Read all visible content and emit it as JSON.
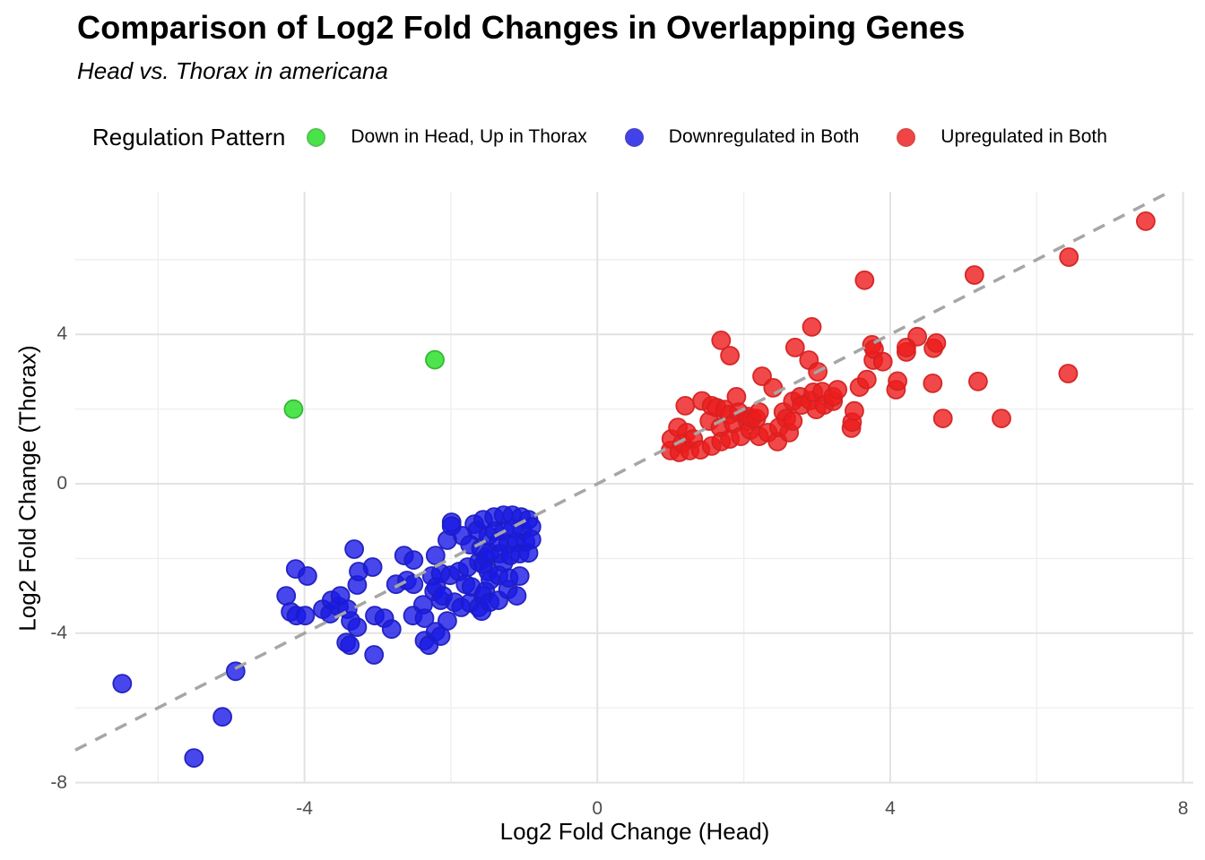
{
  "header": {
    "title": "Comparison of Log2 Fold Changes in Overlapping Genes",
    "subtitle": "Head vs. Thorax in americana"
  },
  "legend": {
    "title": "Regulation Pattern",
    "items": [
      {
        "label": "Down in Head, Up in Thorax",
        "color": "#22dd22",
        "stroke": "#2fb52f"
      },
      {
        "label": "Downregulated in Both",
        "color": "#1919e6",
        "stroke": "#1d1dc0"
      },
      {
        "label": "Upregulated in Both",
        "color": "#ee1c1c",
        "stroke": "#d42222"
      }
    ]
  },
  "chart_data": {
    "type": "scatter",
    "title": "Comparison of Log2 Fold Changes in Overlapping Genes",
    "subtitle": "Head vs. Thorax in americana",
    "xlabel": "Log2 Fold Change (Head)",
    "ylabel": "Log2 Fold Change (Thorax)",
    "xlim": [
      -7.13,
      8.14
    ],
    "ylim": [
      -8.01,
      7.82
    ],
    "x_ticks": [
      -4,
      0,
      4,
      8
    ],
    "y_ticks": [
      -8,
      -4,
      0,
      4
    ],
    "x_minor": [
      -6,
      -2,
      2,
      6
    ],
    "y_minor": [
      -6,
      -2,
      2,
      6
    ],
    "grid": true,
    "legend_position": "top",
    "reference_line": {
      "type": "identity y=x",
      "style": "dashed",
      "color": "#a6a6a6"
    },
    "series": [
      {
        "name": "Downregulated in Both",
        "color": "#1919e6",
        "stroke": "#1d1dc0",
        "points": [
          [
            -6.49,
            -5.35
          ],
          [
            -5.51,
            -7.34
          ],
          [
            -5.12,
            -6.24
          ],
          [
            -4.94,
            -5.02
          ],
          [
            -4.25,
            -3.0
          ],
          [
            -4.19,
            -3.43
          ],
          [
            -4.12,
            -2.28
          ],
          [
            -4.11,
            -3.53
          ],
          [
            -3.99,
            -3.53
          ],
          [
            -3.96,
            -2.47
          ],
          [
            -3.75,
            -3.36
          ],
          [
            -3.65,
            -3.48
          ],
          [
            -3.63,
            -3.12
          ],
          [
            -3.53,
            -3.29
          ],
          [
            -3.51,
            -3.0
          ],
          [
            -3.43,
            -4.25
          ],
          [
            -3.41,
            -3.36
          ],
          [
            -3.38,
            -4.32
          ],
          [
            -3.37,
            -3.67
          ],
          [
            -3.32,
            -1.75
          ],
          [
            -3.28,
            -2.71
          ],
          [
            -3.28,
            -3.84
          ],
          [
            -3.26,
            -2.35
          ],
          [
            -3.07,
            -2.23
          ],
          [
            -3.05,
            -4.58
          ],
          [
            -3.04,
            -3.53
          ],
          [
            -2.91,
            -3.6
          ],
          [
            -2.81,
            -3.89
          ],
          [
            -2.75,
            -2.69
          ],
          [
            -2.64,
            -1.92
          ],
          [
            -2.6,
            -2.59
          ],
          [
            -2.52,
            -3.53
          ],
          [
            -2.51,
            -2.04
          ],
          [
            -2.51,
            -2.69
          ],
          [
            -2.38,
            -3.24
          ],
          [
            -2.36,
            -3.6
          ],
          [
            -2.36,
            -4.2
          ],
          [
            -2.3,
            -4.32
          ],
          [
            -2.26,
            -2.47
          ],
          [
            -2.23,
            -2.88
          ],
          [
            -2.21,
            -1.92
          ],
          [
            -2.21,
            -3.96
          ],
          [
            -2.2,
            -2.76
          ],
          [
            -2.14,
            -2.4
          ],
          [
            -2.14,
            -3.12
          ],
          [
            -2.14,
            -4.08
          ],
          [
            -2.11,
            -3.0
          ],
          [
            -2.05,
            -1.51
          ],
          [
            -2.05,
            -3.67
          ],
          [
            -2.01,
            -2.45
          ],
          [
            -1.99,
            -1.03
          ],
          [
            -1.99,
            -1.13
          ],
          [
            -1.95,
            -3.17
          ],
          [
            -1.89,
            -2.35
          ],
          [
            -1.86,
            -3.31
          ],
          [
            -1.84,
            -1.39
          ],
          [
            -1.8,
            -2.69
          ],
          [
            -1.77,
            -2.23
          ],
          [
            -1.74,
            -1.63
          ],
          [
            -1.74,
            -3.19
          ],
          [
            -1.72,
            -2.76
          ],
          [
            -1.68,
            -1.08
          ],
          [
            -1.64,
            -1.25
          ],
          [
            -1.62,
            -2.09
          ],
          [
            -1.62,
            -3.31
          ],
          [
            -1.59,
            -1.73
          ],
          [
            -1.58,
            -3.41
          ],
          [
            -1.56,
            -0.96
          ],
          [
            -1.56,
            -2.16
          ],
          [
            -1.56,
            -3.0
          ],
          [
            -1.53,
            -2.88
          ],
          [
            -1.52,
            -1.97
          ],
          [
            -1.49,
            -1.39
          ],
          [
            -1.49,
            -2.35
          ],
          [
            -1.47,
            -1.85
          ],
          [
            -1.47,
            -3.17
          ],
          [
            -1.46,
            -2.57
          ],
          [
            -1.41,
            -0.89
          ],
          [
            -1.4,
            -1.27
          ],
          [
            -1.35,
            -1.56
          ],
          [
            -1.35,
            -2.45
          ],
          [
            -1.35,
            -3.12
          ],
          [
            -1.33,
            -1.87
          ],
          [
            -1.28,
            -0.84
          ],
          [
            -1.28,
            -2.11
          ],
          [
            -1.27,
            -1.25
          ],
          [
            -1.22,
            -1.61
          ],
          [
            -1.22,
            -2.83
          ],
          [
            -1.21,
            -2.52
          ],
          [
            -1.19,
            -1.92
          ],
          [
            -1.16,
            -0.84
          ],
          [
            -1.15,
            -1.2
          ],
          [
            -1.1,
            -1.56
          ],
          [
            -1.1,
            -3.0
          ],
          [
            -1.06,
            -1.87
          ],
          [
            -1.06,
            -2.47
          ],
          [
            -1.04,
            -0.89
          ],
          [
            -1.02,
            -1.25
          ],
          [
            -0.98,
            -1.56
          ],
          [
            -0.94,
            -0.96
          ],
          [
            -0.94,
            -1.85
          ],
          [
            -0.9,
            -1.15
          ],
          [
            -0.9,
            -1.49
          ]
        ]
      },
      {
        "name": "Upregulated in Both",
        "color": "#ee1c1c",
        "stroke": "#d42222",
        "points": [
          [
            1.0,
            0.89
          ],
          [
            1.01,
            1.2
          ],
          [
            1.1,
            1.51
          ],
          [
            1.12,
            0.84
          ],
          [
            1.16,
            1.08
          ],
          [
            1.2,
            2.09
          ],
          [
            1.22,
            1.37
          ],
          [
            1.26,
            0.89
          ],
          [
            1.31,
            1.2
          ],
          [
            1.41,
            0.91
          ],
          [
            1.43,
            2.22
          ],
          [
            1.53,
            1.68
          ],
          [
            1.56,
            1.01
          ],
          [
            1.56,
            2.09
          ],
          [
            1.63,
            2.04
          ],
          [
            1.68,
            1.51
          ],
          [
            1.69,
            1.13
          ],
          [
            1.69,
            3.84
          ],
          [
            1.74,
            1.99
          ],
          [
            1.8,
            1.85
          ],
          [
            1.81,
            1.2
          ],
          [
            1.81,
            3.43
          ],
          [
            1.86,
            1.61
          ],
          [
            1.9,
            2.33
          ],
          [
            1.93,
            1.92
          ],
          [
            1.96,
            1.27
          ],
          [
            2.05,
            1.68
          ],
          [
            2.06,
            1.8
          ],
          [
            2.09,
            1.44
          ],
          [
            2.11,
            1.75
          ],
          [
            2.17,
            1.75
          ],
          [
            2.21,
            1.27
          ],
          [
            2.21,
            1.92
          ],
          [
            2.25,
            2.88
          ],
          [
            2.33,
            1.37
          ],
          [
            2.4,
            2.57
          ],
          [
            2.46,
            1.13
          ],
          [
            2.48,
            1.51
          ],
          [
            2.54,
            1.92
          ],
          [
            2.58,
            1.75
          ],
          [
            2.62,
            1.37
          ],
          [
            2.67,
            1.68
          ],
          [
            2.67,
            2.21
          ],
          [
            2.7,
            3.65
          ],
          [
            2.77,
            2.33
          ],
          [
            2.79,
            2.11
          ],
          [
            2.89,
            3.31
          ],
          [
            2.91,
            2.23
          ],
          [
            2.93,
            4.2
          ],
          [
            2.95,
            2.45
          ],
          [
            2.99,
            1.99
          ],
          [
            3.01,
            3.0
          ],
          [
            3.07,
            2.47
          ],
          [
            3.1,
            2.11
          ],
          [
            3.22,
            2.21
          ],
          [
            3.22,
            2.33
          ],
          [
            3.28,
            2.52
          ],
          [
            3.47,
            1.49
          ],
          [
            3.48,
            1.65
          ],
          [
            3.51,
            1.95
          ],
          [
            3.58,
            2.59
          ],
          [
            3.65,
            5.45
          ],
          [
            3.68,
            2.79
          ],
          [
            3.75,
            3.72
          ],
          [
            3.77,
            3.31
          ],
          [
            3.78,
            3.6
          ],
          [
            3.9,
            3.27
          ],
          [
            4.08,
            2.52
          ],
          [
            4.1,
            2.75
          ],
          [
            4.22,
            3.53
          ],
          [
            4.22,
            3.65
          ],
          [
            4.37,
            3.94
          ],
          [
            4.58,
            2.69
          ],
          [
            4.59,
            3.63
          ],
          [
            4.63,
            3.77
          ],
          [
            4.72,
            1.75
          ],
          [
            5.15,
            5.59
          ],
          [
            5.2,
            2.74
          ],
          [
            5.52,
            1.75
          ],
          [
            6.43,
            2.95
          ],
          [
            6.44,
            6.07
          ],
          [
            7.49,
            7.03
          ]
        ]
      },
      {
        "name": "Down in Head, Up in Thorax",
        "color": "#22dd22",
        "stroke": "#2fb52f",
        "points": [
          [
            -4.15,
            2.0
          ],
          [
            -2.22,
            3.32
          ]
        ]
      }
    ]
  }
}
